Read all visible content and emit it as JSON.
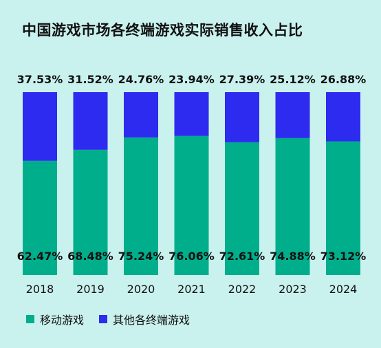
{
  "title": "中国游戏市场各终端游戏实际销售收入占比",
  "chart_data": {
    "type": "bar",
    "stacked": true,
    "percent": true,
    "title": "中国游戏市场各终端游戏实际销售收入占比",
    "categories": [
      "2018",
      "2019",
      "2020",
      "2021",
      "2022",
      "2023",
      "2024"
    ],
    "series": [
      {
        "name": "移动游戏",
        "color": "#00ae8c",
        "values": [
          62.47,
          68.48,
          75.24,
          76.06,
          72.61,
          74.88,
          73.12
        ],
        "labels": [
          "62.47%",
          "68.48%",
          "75.24%",
          "76.06%",
          "72.61%",
          "74.88%",
          "73.12%"
        ]
      },
      {
        "name": "其他各终端游戏",
        "color": "#2d2bef",
        "values": [
          37.53,
          31.52,
          24.76,
          23.94,
          27.39,
          25.12,
          26.88
        ],
        "labels": [
          "37.53%",
          "31.52%",
          "24.76%",
          "23.94%",
          "27.39%",
          "25.12%",
          "26.88%"
        ]
      }
    ],
    "ylim": [
      0,
      100
    ],
    "grid": false,
    "legend_position": "bottom-left"
  },
  "legend": [
    {
      "label": "移动游戏",
      "color": "#00ae8c"
    },
    {
      "label": "其他各终端游戏",
      "color": "#2d2bef"
    }
  ]
}
